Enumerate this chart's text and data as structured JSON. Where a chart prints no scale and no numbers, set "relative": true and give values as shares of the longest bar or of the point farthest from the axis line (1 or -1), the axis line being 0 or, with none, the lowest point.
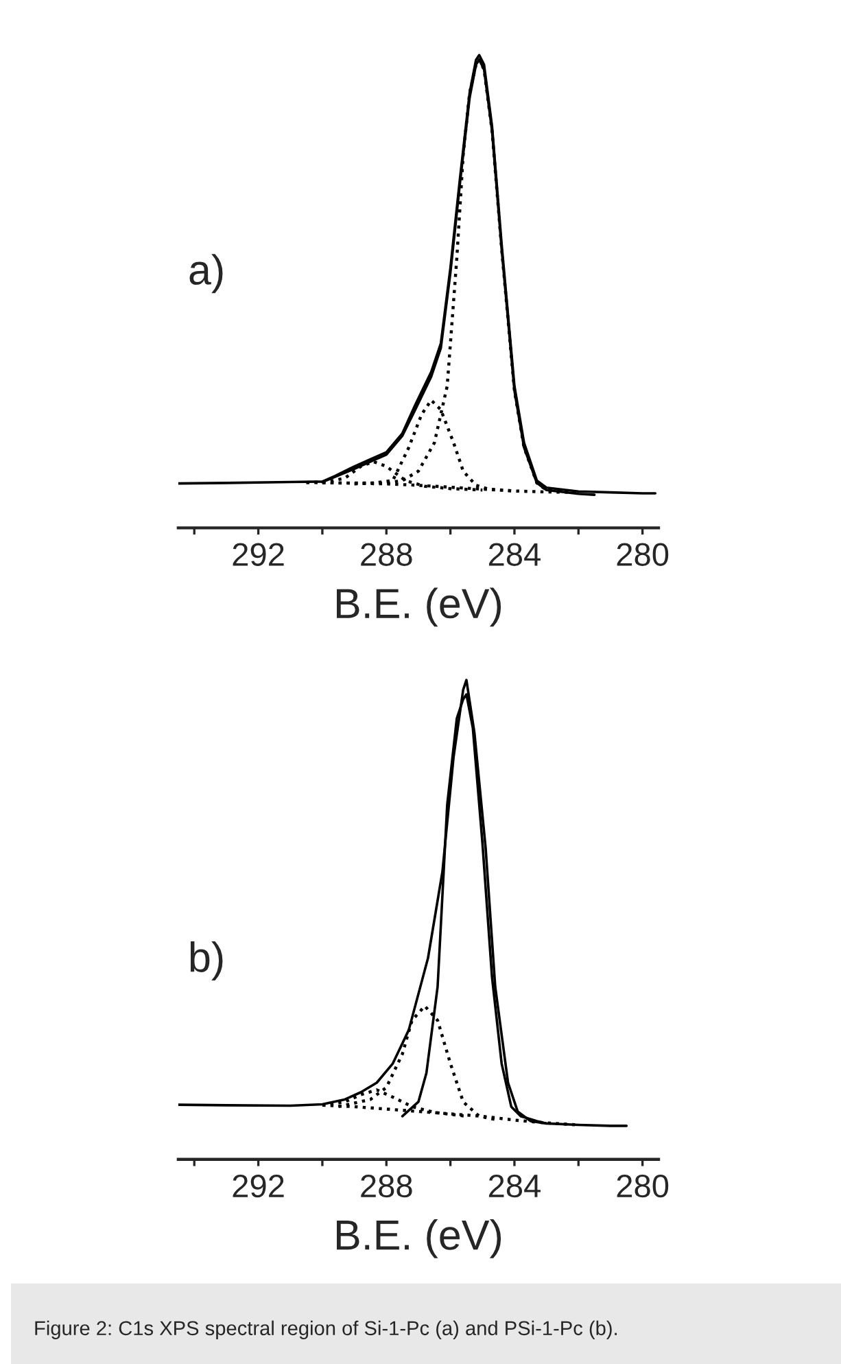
{
  "chart_data": [
    {
      "type": "line",
      "relative": true,
      "xlabel": "B.E. (eV)",
      "xlim": [
        294.5,
        279.5
      ],
      "tick_labels": "x",
      "xticks": [
        {
          "value": 294,
          "label": null
        },
        292,
        {
          "value": 290,
          "label": null
        },
        288,
        {
          "value": 286,
          "label": null
        },
        284,
        {
          "value": 282,
          "label": null
        },
        280
      ],
      "annotations": [
        "a)"
      ],
      "series": [
        {
          "color": "#000000",
          "line_style": "solid",
          "x": [
            294.5,
            293,
            291,
            290,
            289.6,
            289,
            288.5,
            288,
            287.5,
            287.1,
            286.6,
            286.3,
            286.0,
            285.7,
            285.4,
            285.2,
            285.1,
            284.95,
            284.7,
            284.4,
            284.2,
            284.0,
            283.7,
            283.3,
            283,
            282,
            281,
            280,
            279.6
          ],
          "values": [
            0.094,
            0.095,
            0.097,
            0.098,
            0.11,
            0.13,
            0.145,
            0.16,
            0.2,
            0.26,
            0.33,
            0.39,
            0.55,
            0.74,
            0.92,
            0.99,
            1.0,
            0.98,
            0.85,
            0.6,
            0.45,
            0.3,
            0.18,
            0.1,
            0.085,
            0.077,
            0.075,
            0.073,
            0.073
          ]
        },
        {
          "color": "#000000",
          "line_style": "solid",
          "x": [
            290,
            289,
            288.5,
            288,
            287.5,
            287.1,
            286.6,
            286.3,
            286.0,
            285.7,
            285.4,
            285.2,
            285.1,
            284.95,
            284.7,
            284.4,
            284.2,
            284.0,
            283.7,
            283.3,
            283,
            282,
            281.5
          ],
          "values": [
            0.097,
            0.125,
            0.14,
            0.155,
            0.195,
            0.25,
            0.32,
            0.38,
            0.54,
            0.73,
            0.91,
            0.98,
            0.99,
            0.97,
            0.84,
            0.59,
            0.44,
            0.29,
            0.17,
            0.095,
            0.08,
            0.072,
            0.07
          ]
        },
        {
          "color": "#000000",
          "line_style": "dotted",
          "x": [
            290,
            289,
            288,
            287.5,
            287,
            286.5,
            286.1,
            285.8,
            285.6,
            285.4,
            285.2,
            285.1,
            284.95,
            284.7,
            284.4,
            284.2,
            284.0,
            283.7,
            283.3,
            283,
            282
          ],
          "values": [
            0.095,
            0.095,
            0.095,
            0.1,
            0.12,
            0.18,
            0.3,
            0.57,
            0.79,
            0.92,
            0.98,
            0.99,
            0.97,
            0.84,
            0.59,
            0.44,
            0.29,
            0.17,
            0.095,
            0.08,
            0.075
          ]
        },
        {
          "color": "#000000",
          "line_style": "dotted",
          "x": [
            289,
            288.4,
            287.8,
            287.3,
            286.9,
            286.6,
            286.3,
            285.9,
            285.6,
            285.2,
            284.8,
            284
          ],
          "values": [
            0.093,
            0.095,
            0.1,
            0.17,
            0.24,
            0.27,
            0.25,
            0.18,
            0.12,
            0.09,
            0.082,
            0.078
          ]
        },
        {
          "color": "#000000",
          "line_style": "dotted",
          "x": [
            290.5,
            289.8,
            289.3,
            288.8,
            288.4,
            288,
            287.4,
            286.8,
            286,
            285
          ],
          "values": [
            0.096,
            0.098,
            0.105,
            0.13,
            0.14,
            0.13,
            0.1,
            0.088,
            0.083,
            0.08
          ]
        },
        {
          "color": "#000000",
          "line_style": "dotted",
          "x": [
            290.5,
            289.5,
            288,
            287,
            286,
            285,
            284,
            283,
            282
          ],
          "values": [
            0.096,
            0.095,
            0.093,
            0.09,
            0.086,
            0.082,
            0.078,
            0.076,
            0.075
          ]
        }
      ]
    },
    {
      "type": "line",
      "relative": true,
      "xlabel": "B.E. (eV)",
      "xlim": [
        294.5,
        279.5
      ],
      "tick_labels": "x",
      "xticks": [
        {
          "value": 294,
          "label": null
        },
        292,
        {
          "value": 290,
          "label": null
        },
        288,
        {
          "value": 286,
          "label": null
        },
        284,
        {
          "value": 282,
          "label": null
        },
        280
      ],
      "annotations": [
        "b)",
        "Figure 2: C1s XPS spectral region of Si-1-Pc (a) and PSi-1-Pc (b)."
      ],
      "series": [
        {
          "color": "#000000",
          "line_style": "solid",
          "x": [
            294.5,
            293,
            291,
            290,
            289.3,
            288.8,
            288.3,
            287.8,
            287.3,
            286.7,
            286.25,
            285.9,
            285.6,
            285.5,
            285.25,
            284.9,
            284.6,
            284.2,
            283.9,
            283.5,
            283,
            282,
            281,
            280.5
          ],
          "values": [
            0.114,
            0.113,
            0.112,
            0.115,
            0.125,
            0.14,
            0.16,
            0.2,
            0.27,
            0.42,
            0.6,
            0.84,
            0.98,
            1.0,
            0.89,
            0.65,
            0.36,
            0.16,
            0.1,
            0.08,
            0.075,
            0.072,
            0.07,
            0.07
          ]
        },
        {
          "color": "#000000",
          "line_style": "solid",
          "x": [
            287.5,
            287.0,
            286.75,
            286.4,
            286.1,
            285.8,
            285.6,
            285.5,
            285.3,
            285.0,
            284.7,
            284.4,
            284.1,
            283.8,
            283.3,
            283
          ],
          "values": [
            0.09,
            0.12,
            0.18,
            0.36,
            0.74,
            0.92,
            0.96,
            0.97,
            0.9,
            0.66,
            0.38,
            0.2,
            0.11,
            0.09,
            0.08,
            0.075
          ]
        },
        {
          "color": "#000000",
          "line_style": "dotted",
          "x": [
            289.5,
            288.5,
            288,
            287.5,
            287.2,
            286.8,
            286.4,
            286.0,
            285.6,
            285.1,
            284.5
          ],
          "values": [
            0.11,
            0.125,
            0.15,
            0.22,
            0.29,
            0.32,
            0.29,
            0.2,
            0.12,
            0.09,
            0.082
          ]
        },
        {
          "color": "#000000",
          "line_style": "dotted",
          "x": [
            290,
            289.3,
            288.8,
            288.3,
            287.8,
            287.2,
            286.5,
            285.5
          ],
          "values": [
            0.113,
            0.12,
            0.135,
            0.145,
            0.13,
            0.11,
            0.098,
            0.09
          ]
        },
        {
          "color": "#000000",
          "line_style": "dotted",
          "x": [
            290,
            289,
            288,
            287,
            286,
            285,
            284,
            283,
            282
          ],
          "values": [
            0.113,
            0.11,
            0.105,
            0.1,
            0.095,
            0.09,
            0.082,
            0.076,
            0.072
          ]
        }
      ]
    }
  ]
}
